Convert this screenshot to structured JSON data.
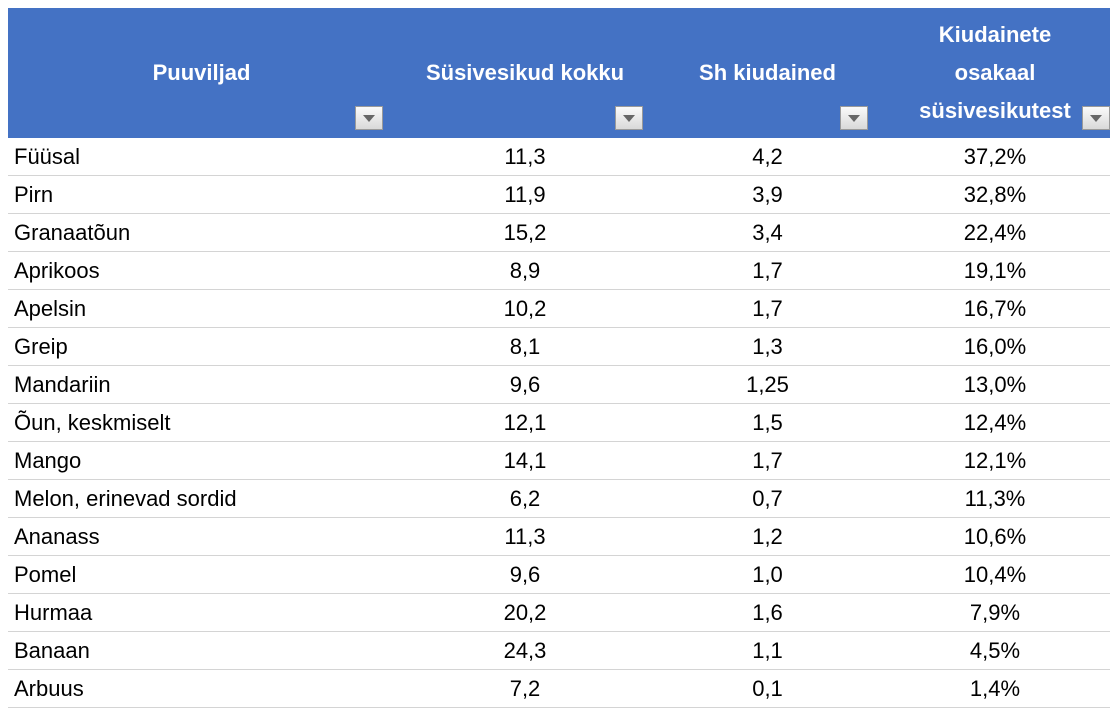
{
  "table": {
    "headers": [
      "Puuviljad",
      "Süsivesikud kokku",
      "Sh kiudained",
      "Kiudainete osakaal süsivesikutest"
    ],
    "rows": [
      [
        "Füüsal",
        "11,3",
        "4,2",
        "37,2%"
      ],
      [
        "Pirn",
        "11,9",
        "3,9",
        "32,8%"
      ],
      [
        "Granaatõun",
        "15,2",
        "3,4",
        "22,4%"
      ],
      [
        "Aprikoos",
        "8,9",
        "1,7",
        "19,1%"
      ],
      [
        "Apelsin",
        "10,2",
        "1,7",
        "16,7%"
      ],
      [
        "Greip",
        "8,1",
        "1,3",
        "16,0%"
      ],
      [
        "Mandariin",
        "9,6",
        "1,25",
        "13,0%"
      ],
      [
        "Õun, keskmiselt",
        "12,1",
        "1,5",
        "12,4%"
      ],
      [
        "Mango",
        "14,1",
        "1,7",
        "12,1%"
      ],
      [
        "Melon, erinevad sordid",
        "6,2",
        "0,7",
        "11,3%"
      ],
      [
        "Ananass",
        "11,3",
        "1,2",
        "10,6%"
      ],
      [
        "Pomel",
        "9,6",
        "1,0",
        "10,4%"
      ],
      [
        "Hurmaa",
        "20,2",
        "1,6",
        "7,9%"
      ],
      [
        "Banaan",
        "24,3",
        "1,1",
        "4,5%"
      ],
      [
        "Arbuus",
        "7,2",
        "0,1",
        "1,4%"
      ]
    ]
  }
}
